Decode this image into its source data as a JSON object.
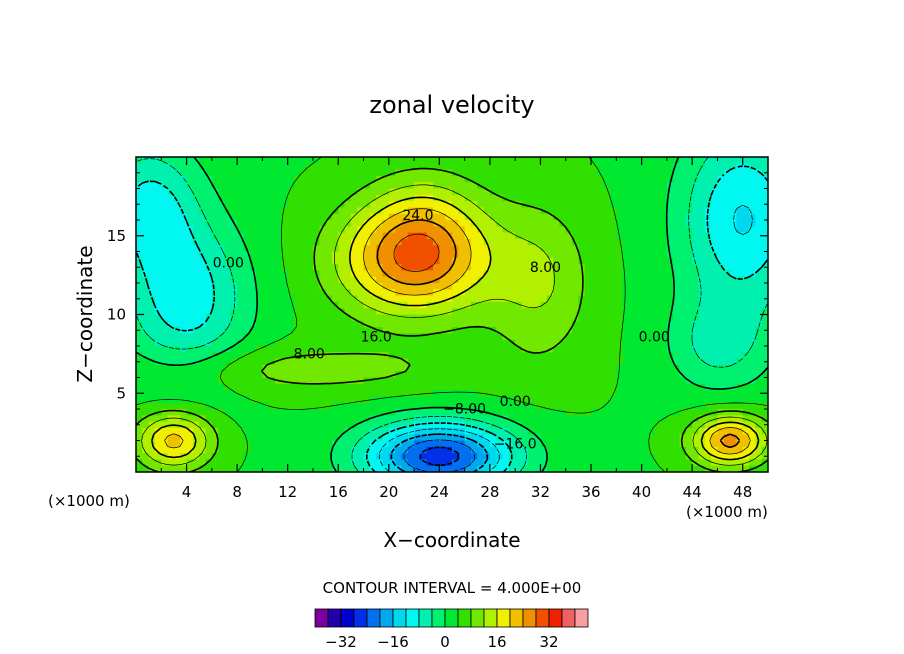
{
  "chart_data": {
    "type": "heatmap",
    "title": "zonal velocity",
    "xlabel": "X−coordinate",
    "ylabel": "Z−coordinate",
    "x_unit_left": "(×1000 m)",
    "x_unit_right": "(×1000 m)",
    "xlim": [
      0,
      50
    ],
    "ylim": [
      0,
      20
    ],
    "x_ticks": [
      4,
      8,
      12,
      16,
      20,
      24,
      28,
      32,
      36,
      40,
      44,
      48
    ],
    "y_ticks": [
      5,
      10,
      15
    ],
    "contour_interval_label": "CONTOUR INTERVAL = 4.000E+00",
    "contour_labels": [
      {
        "text": "24.0",
        "x": 22.3,
        "y": 16.0
      },
      {
        "text": "16.0",
        "x": 19.0,
        "y": 8.3
      },
      {
        "text": "8.00",
        "x": 13.7,
        "y": 7.2
      },
      {
        "text": "0.00",
        "x": 7.3,
        "y": 13.0
      },
      {
        "text": "8.00",
        "x": 32.4,
        "y": 12.7
      },
      {
        "text": "0.00",
        "x": 41.0,
        "y": 8.3
      },
      {
        "text": "0.00",
        "x": 30.0,
        "y": 4.2
      },
      {
        "text": "−8.00",
        "x": 26.0,
        "y": 3.7
      },
      {
        "text": "−16.0",
        "x": 30.0,
        "y": 1.5
      }
    ],
    "colorbar": {
      "levels": [
        -36,
        -32,
        -28,
        -24,
        -20,
        -16,
        -12,
        -8,
        -4,
        0,
        4,
        8,
        12,
        16,
        20,
        24,
        28,
        32,
        36
      ],
      "tick_labels": [
        "−32",
        "−16",
        "0",
        "16",
        "32"
      ],
      "tick_values": [
        -32,
        -16,
        0,
        16,
        32
      ],
      "colors": [
        "#7a00a0",
        "#2200a8",
        "#0000cc",
        "#0030e8",
        "#0070f0",
        "#00a8f0",
        "#00d8f0",
        "#00f8f0",
        "#00f0b0",
        "#00f070",
        "#00e830",
        "#30e000",
        "#70e800",
        "#b0f000",
        "#f0f000",
        "#f0c000",
        "#f09000",
        "#f05000",
        "#f02000",
        "#f06060",
        "#f8a0a0"
      ]
    },
    "field_blobs": [
      {
        "x": 25,
        "y": 8,
        "sx": 80,
        "sy": 60,
        "amp": 4
      },
      {
        "x": 22,
        "y": 13.5,
        "sx": 6,
        "sy": 3.5,
        "amp": 24
      },
      {
        "x": 23,
        "y": 16.5,
        "sx": 4.5,
        "sy": 3,
        "amp": 6
      },
      {
        "x": 24,
        "y": 1,
        "sx": 6,
        "sy": 2.2,
        "amp": -30
      },
      {
        "x": 4,
        "y": 11,
        "sx": 5,
        "sy": 5,
        "amp": -14
      },
      {
        "x": 1,
        "y": 17,
        "sx": 4,
        "sy": 4,
        "amp": -12
      },
      {
        "x": 48,
        "y": 16,
        "sx": 5,
        "sy": 6,
        "amp": -16
      },
      {
        "x": 46,
        "y": 8,
        "sx": 4,
        "sy": 3,
        "amp": -8
      },
      {
        "x": 47,
        "y": 2,
        "sx": 3,
        "sy": 1.6,
        "amp": 22
      },
      {
        "x": 3,
        "y": 2,
        "sx": 3,
        "sy": 1.8,
        "amp": 18
      },
      {
        "x": 32,
        "y": 12,
        "sx": 4,
        "sy": 5,
        "amp": 8
      },
      {
        "x": 13,
        "y": 6.5,
        "sx": 12,
        "sy": 1.5,
        "amp": 6
      }
    ]
  }
}
